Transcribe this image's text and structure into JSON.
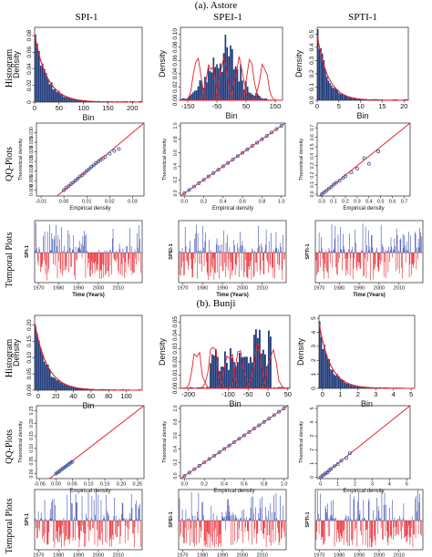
{
  "figure": {
    "section_a": "(a). Astore",
    "section_b": "(b). Bunji",
    "columns": [
      "SPI-1",
      "SPEI-1",
      "SPTI-1"
    ],
    "row_labels": [
      "Histogram",
      "QQ-Plots",
      "Temporal Plots"
    ],
    "colors": {
      "bar": "#1f3b7a",
      "fit": "#e8202a",
      "qq_point": "#3a5aa8",
      "pos": "#3b4bb0",
      "neg": "#e8202a"
    }
  },
  "chart_data": [
    {
      "id": "a-hist-spi",
      "type": "bar",
      "xlabel": "Bin",
      "ylabel": "Density",
      "xlim": [
        0,
        220
      ],
      "ylim": [
        0,
        0.09
      ],
      "xticks": [
        0,
        50,
        100,
        150,
        200
      ],
      "yticks": [
        0,
        0.02,
        0.04,
        0.06,
        0.08
      ],
      "xtick_labels": [
        "0",
        "50",
        "100",
        "150",
        "200"
      ],
      "ytick_labels": [
        "0",
        "0.02",
        "0.04",
        "0.06",
        "0.08"
      ]
    },
    {
      "id": "a-hist-spei",
      "type": "bar",
      "xlabel": "Bin",
      "ylabel": "Density",
      "xlim": [
        -175,
        175
      ],
      "ylim": [
        0,
        0.11
      ],
      "xticks": [
        -150,
        -50,
        50,
        150
      ],
      "yticks": [
        0,
        0.02,
        0.04,
        0.06,
        0.08,
        0.1
      ],
      "xtick_labels": [
        "-150",
        "-50",
        "50",
        "150"
      ],
      "ytick_labels": [
        "0.00",
        "0.02",
        "0.04",
        "0.06",
        "0.08",
        "0.10"
      ]
    },
    {
      "id": "a-hist-spti",
      "type": "bar",
      "xlabel": "Bin",
      "ylabel": "Density",
      "xlim": [
        0,
        21
      ],
      "ylim": [
        0,
        0.55
      ],
      "xticks": [
        0,
        5,
        10,
        15,
        20
      ],
      "yticks": [
        0,
        0.1,
        0.2,
        0.3,
        0.4,
        0.5
      ],
      "xtick_labels": [
        "0",
        "5",
        "10",
        "15",
        "20"
      ],
      "ytick_labels": [
        "0.0",
        "0.1",
        "0.2",
        "0.3",
        "0.4",
        "0.5"
      ]
    },
    {
      "id": "a-qq-spi",
      "type": "scatter",
      "xlabel": "Empirical density",
      "ylabel": "Theoretical density",
      "xlim": [
        -0.012,
        0.035
      ],
      "ylim": [
        -0.003,
        0.035
      ],
      "xticks": [
        -0.01,
        0,
        0.01,
        0.02,
        0.03
      ],
      "yticks": [
        0,
        0.005,
        0.01,
        0.015,
        0.02,
        0.025,
        0.03
      ],
      "xtick_labels": [
        "-0.01",
        "0.00",
        "0.01",
        "0.02",
        "0.03"
      ],
      "ytick_labels": [
        "0.000",
        "0.005",
        "0.010",
        "0.015",
        "0.020",
        "0.025",
        "0.030"
      ],
      "points": [
        [
          0.0,
          0.0
        ],
        [
          0.001,
          0.0012
        ],
        [
          0.002,
          0.0021
        ],
        [
          0.003,
          0.0032
        ],
        [
          0.004,
          0.004
        ],
        [
          0.005,
          0.0051
        ],
        [
          0.006,
          0.006
        ],
        [
          0.007,
          0.0072
        ],
        [
          0.008,
          0.0079
        ],
        [
          0.009,
          0.009
        ],
        [
          0.01,
          0.0101
        ],
        [
          0.011,
          0.011
        ],
        [
          0.012,
          0.0122
        ],
        [
          0.013,
          0.013
        ],
        [
          0.014,
          0.0141
        ],
        [
          0.015,
          0.015
        ],
        [
          0.016,
          0.0158
        ],
        [
          0.017,
          0.0166
        ],
        [
          0.018,
          0.0174
        ],
        [
          0.02,
          0.019
        ],
        [
          0.022,
          0.0205
        ],
        [
          0.024,
          0.0215
        ]
      ]
    },
    {
      "id": "a-qq-spei",
      "type": "scatter",
      "xlabel": "Empirical density",
      "ylabel": "Theoretical density",
      "xlim": [
        -0.04,
        1.04
      ],
      "ylim": [
        -0.04,
        1.04
      ],
      "xticks": [
        0,
        0.2,
        0.4,
        0.6,
        0.8,
        1.0
      ],
      "yticks": [
        0,
        0.2,
        0.4,
        0.6,
        0.8,
        1.0
      ],
      "xtick_labels": [
        "0.0",
        "0.2",
        "0.4",
        "0.6",
        "0.8",
        "1.0"
      ],
      "ytick_labels": [
        "0.0",
        "0.2",
        "0.4",
        "0.6",
        "0.8",
        "1.0"
      ],
      "points": [
        [
          0.0,
          0.0
        ],
        [
          0.05,
          0.05
        ],
        [
          0.1,
          0.1
        ],
        [
          0.15,
          0.15
        ],
        [
          0.2,
          0.2
        ],
        [
          0.25,
          0.25
        ],
        [
          0.3,
          0.3
        ],
        [
          0.35,
          0.35
        ],
        [
          0.4,
          0.4
        ],
        [
          0.45,
          0.45
        ],
        [
          0.5,
          0.5
        ],
        [
          0.55,
          0.55
        ],
        [
          0.6,
          0.6
        ],
        [
          0.65,
          0.65
        ],
        [
          0.7,
          0.7
        ],
        [
          0.75,
          0.75
        ],
        [
          0.8,
          0.8
        ],
        [
          0.85,
          0.85
        ],
        [
          0.9,
          0.9
        ],
        [
          0.95,
          0.95
        ],
        [
          1.0,
          1.0
        ]
      ]
    },
    {
      "id": "a-qq-spti",
      "type": "scatter",
      "xlabel": "Empirical density",
      "ylabel": "Theoretical density",
      "xlim": [
        -0.04,
        0.75
      ],
      "ylim": [
        -0.02,
        0.75
      ],
      "xticks": [
        0,
        0.1,
        0.2,
        0.3,
        0.4,
        0.5,
        0.6,
        0.7
      ],
      "yticks": [
        0,
        0.1,
        0.2,
        0.3,
        0.4,
        0.5,
        0.6,
        0.7
      ],
      "xtick_labels": [
        "0.0",
        "0.1",
        "0.2",
        "0.3",
        "0.4",
        "0.5",
        "0.6",
        "0.7"
      ],
      "ytick_labels": [
        "0.0",
        "0.1",
        "0.2",
        "0.3",
        "0.4",
        "0.5",
        "0.6",
        "0.7"
      ],
      "points": [
        [
          0.0,
          0.0
        ],
        [
          0.02,
          0.02
        ],
        [
          0.04,
          0.035
        ],
        [
          0.06,
          0.06
        ],
        [
          0.08,
          0.075
        ],
        [
          0.1,
          0.1
        ],
        [
          0.12,
          0.12
        ],
        [
          0.15,
          0.14
        ],
        [
          0.18,
          0.17
        ],
        [
          0.2,
          0.19
        ],
        [
          0.25,
          0.23
        ],
        [
          0.3,
          0.27
        ],
        [
          0.36,
          0.38
        ],
        [
          0.4,
          0.32
        ],
        [
          0.48,
          0.45
        ]
      ]
    },
    {
      "id": "a-ts-spi",
      "type": "bar",
      "xlabel": "Time (Years)",
      "ylabel": "SPI-1",
      "xlim": [
        1968,
        2022
      ],
      "ylim": [
        -3,
        3.2
      ],
      "xticks": [
        1970,
        1980,
        1990,
        2000,
        2010
      ],
      "xtick_labels": [
        "1970",
        "1980",
        "1990",
        "2000",
        "2010"
      ],
      "ytick_labels": []
    },
    {
      "id": "a-ts-spei",
      "type": "bar",
      "xlabel": "Time (Years)",
      "ylabel": "SPEI-1",
      "xlim": [
        1968,
        2022
      ],
      "ylim": [
        -3,
        3.2
      ],
      "xticks": [
        1970,
        1980,
        1990,
        2000,
        2010
      ],
      "xtick_labels": [
        "1970",
        "1980",
        "1990",
        "2000",
        "2010"
      ],
      "ytick_labels": []
    },
    {
      "id": "a-ts-spti",
      "type": "bar",
      "xlabel": "Time (Years)",
      "ylabel": "SPTI-1",
      "xlim": [
        1968,
        2022
      ],
      "ylim": [
        -3,
        3.2
      ],
      "xticks": [
        1970,
        1980,
        1990,
        2000,
        2010
      ],
      "xtick_labels": [
        "1970",
        "1980",
        "1990",
        "2000",
        "2010"
      ],
      "ytick_labels": []
    },
    {
      "id": "b-hist-spi",
      "type": "bar",
      "xlabel": "Bin",
      "ylabel": "Density",
      "xlim": [
        -4,
        118
      ],
      "ylim": [
        0,
        0.23
      ],
      "xticks": [
        0,
        20,
        40,
        60,
        80,
        100
      ],
      "yticks": [
        0,
        0.05,
        0.1,
        0.15,
        0.2
      ],
      "xtick_labels": [
        "0",
        "20",
        "40",
        "60",
        "80",
        "100"
      ],
      "ytick_labels": [
        "0.00",
        "0.05",
        "0.10",
        "0.15",
        "0.20"
      ]
    },
    {
      "id": "b-hist-spei",
      "type": "bar",
      "xlabel": "Bin",
      "ylabel": "Density",
      "xlim": [
        -220,
        55
      ],
      "ylim": [
        0,
        0.055
      ],
      "xticks": [
        -200,
        -100,
        -50,
        0,
        50
      ],
      "yticks": [
        0,
        0.01,
        0.02,
        0.03,
        0.04,
        0.05
      ],
      "xtick_labels": [
        "-200",
        "-100",
        "-50",
        "0",
        "50"
      ],
      "ytick_labels": [
        "0.00",
        "0.01",
        "0.02",
        "0.03",
        "0.04",
        "0.05"
      ]
    },
    {
      "id": "b-hist-spti",
      "type": "bar",
      "xlabel": "Bin",
      "ylabel": "Density",
      "xlim": [
        -0.2,
        5.2
      ],
      "ylim": [
        0,
        5.2
      ],
      "xticks": [
        0,
        1,
        2,
        3,
        4,
        5
      ],
      "yticks": [
        0,
        1,
        2,
        3,
        4,
        5
      ],
      "xtick_labels": [
        "0",
        "1",
        "2",
        "3",
        "4",
        "5"
      ],
      "ytick_labels": [
        "0",
        "1",
        "2",
        "3",
        "4",
        "5"
      ]
    },
    {
      "id": "b-qq-spi",
      "type": "scatter",
      "xlabel": "Empirical density",
      "ylabel": "Theoretical density",
      "xlim": [
        -0.06,
        0.27
      ],
      "ylim": [
        -0.02,
        0.27
      ],
      "xticks": [
        -0.05,
        0,
        0.05,
        0.1,
        0.15,
        0.2,
        0.25
      ],
      "yticks": [
        0,
        0.05,
        0.1,
        0.15,
        0.2,
        0.25
      ],
      "xtick_labels": [
        "-0.05",
        "0.00",
        "0.05",
        "0.10",
        "0.15",
        "0.20",
        "0.25"
      ],
      "ytick_labels": [
        "0.00",
        "0.05",
        "0.10",
        "0.15",
        "0.20",
        "0.25"
      ],
      "points": [
        [
          0.0,
          0.0
        ],
        [
          0.005,
          0.004
        ],
        [
          0.01,
          0.009
        ],
        [
          0.015,
          0.014
        ],
        [
          0.02,
          0.019
        ],
        [
          0.025,
          0.024
        ],
        [
          0.03,
          0.028
        ],
        [
          0.035,
          0.033
        ],
        [
          0.04,
          0.038
        ],
        [
          0.045,
          0.043
        ],
        [
          0.05,
          0.047
        ]
      ]
    },
    {
      "id": "b-qq-spei",
      "type": "scatter",
      "xlabel": "Empirical density",
      "ylabel": "Theoretical density",
      "xlim": [
        -0.04,
        1.04
      ],
      "ylim": [
        -0.04,
        1.04
      ],
      "xticks": [
        0,
        0.2,
        0.4,
        0.6,
        0.8,
        1.0
      ],
      "yticks": [
        0,
        0.2,
        0.4,
        0.6,
        0.8,
        1.0
      ],
      "xtick_labels": [
        "0.0",
        "0.2",
        "0.4",
        "0.6",
        "0.8",
        "1.0"
      ],
      "ytick_labels": [
        "0.0",
        "0.2",
        "0.4",
        "0.6",
        "0.8",
        "1.0"
      ],
      "points": [
        [
          0.0,
          0.0
        ],
        [
          0.05,
          0.05
        ],
        [
          0.1,
          0.1
        ],
        [
          0.15,
          0.15
        ],
        [
          0.2,
          0.2
        ],
        [
          0.25,
          0.25
        ],
        [
          0.3,
          0.3
        ],
        [
          0.35,
          0.35
        ],
        [
          0.4,
          0.4
        ],
        [
          0.45,
          0.45
        ],
        [
          0.5,
          0.5
        ],
        [
          0.55,
          0.55
        ],
        [
          0.6,
          0.6
        ],
        [
          0.65,
          0.65
        ],
        [
          0.7,
          0.7
        ],
        [
          0.75,
          0.75
        ],
        [
          0.8,
          0.8
        ],
        [
          0.85,
          0.85
        ],
        [
          0.9,
          0.9
        ],
        [
          0.95,
          0.95
        ],
        [
          1.0,
          1.0
        ]
      ]
    },
    {
      "id": "b-qq-spti",
      "type": "scatter",
      "xlabel": "Empirical density",
      "ylabel": "Theoretical density",
      "xlim": [
        -0.2,
        5.2
      ],
      "ylim": [
        -0.1,
        5.2
      ],
      "xticks": [
        0,
        1,
        2,
        3,
        4,
        5
      ],
      "yticks": [
        0,
        1,
        2,
        3,
        4,
        5
      ],
      "xtick_labels": [
        "0",
        "1",
        "2",
        "3",
        "4",
        "5"
      ],
      "ytick_labels": [
        "0",
        "1",
        "2",
        "3",
        "4",
        "5"
      ],
      "points": [
        [
          0.0,
          0.0
        ],
        [
          0.1,
          0.1
        ],
        [
          0.2,
          0.2
        ],
        [
          0.3,
          0.3
        ],
        [
          0.4,
          0.35
        ],
        [
          0.5,
          0.5
        ],
        [
          0.6,
          0.6
        ],
        [
          0.8,
          0.8
        ],
        [
          1.0,
          0.95
        ],
        [
          1.2,
          1.2
        ],
        [
          1.5,
          1.4
        ],
        [
          1.7,
          1.75
        ]
      ]
    },
    {
      "id": "b-ts-spi",
      "type": "bar",
      "xlabel": "Time (Years)",
      "ylabel": "SPI-1",
      "xlim": [
        1968,
        2022
      ],
      "ylim": [
        -3,
        3.2
      ],
      "xticks": [
        1970,
        1980,
        1990,
        2000,
        2010
      ],
      "xtick_labels": [
        "1970",
        "1980",
        "1990",
        "2000",
        "2010"
      ],
      "ytick_labels": []
    },
    {
      "id": "b-ts-spei",
      "type": "bar",
      "xlabel": "Time (Years)",
      "ylabel": "SPEI-1",
      "xlim": [
        1968,
        2022
      ],
      "ylim": [
        -3,
        3.2
      ],
      "xticks": [
        1970,
        1980,
        1990,
        2000,
        2010
      ],
      "xtick_labels": [
        "1970",
        "1980",
        "1990",
        "2000",
        "2010"
      ],
      "ytick_labels": []
    },
    {
      "id": "b-ts-spti",
      "type": "bar",
      "xlabel": "Time (Years)",
      "ylabel": "SPTI-1",
      "xlim": [
        1968,
        2022
      ],
      "ylim": [
        -3,
        3.2
      ],
      "xticks": [
        1970,
        1980,
        1990,
        2000,
        2010
      ],
      "xtick_labels": [
        "1970",
        "1980",
        "1990",
        "2000",
        "2010"
      ],
      "ytick_labels": []
    }
  ]
}
